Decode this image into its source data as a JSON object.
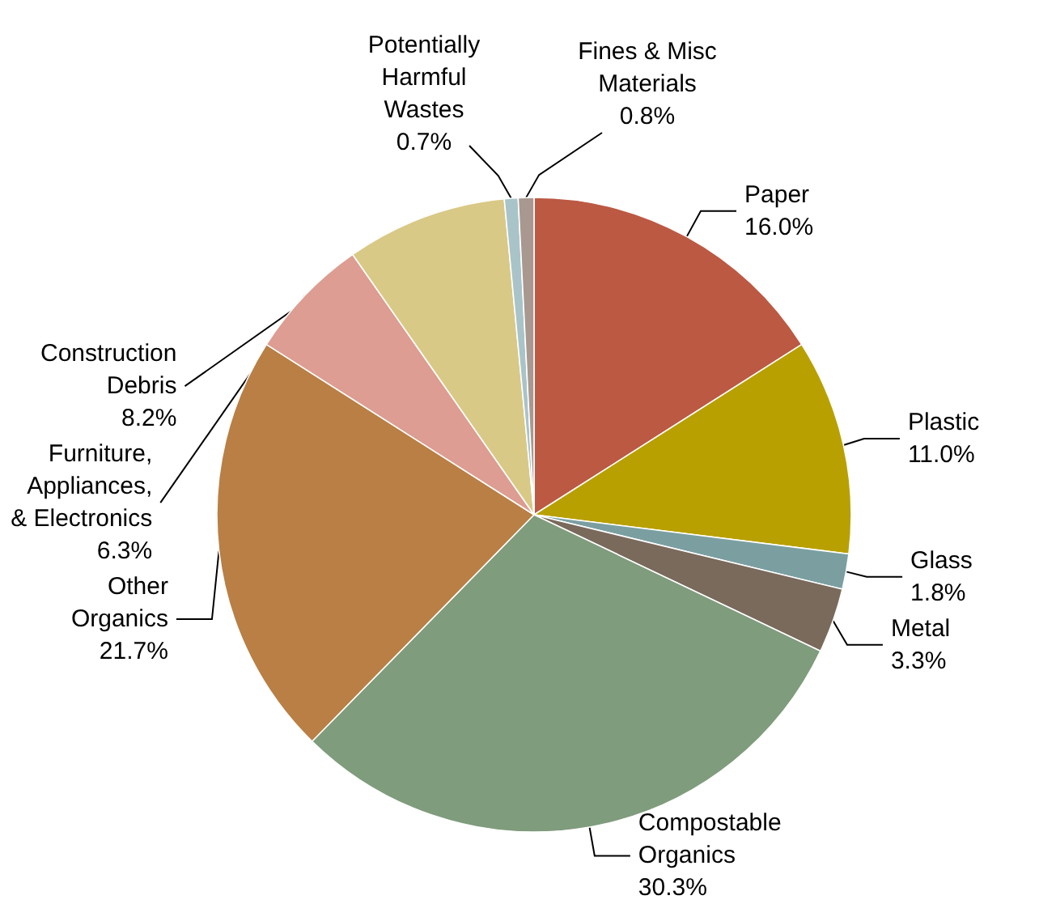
{
  "chart_data": {
    "type": "pie",
    "categories": [
      "Paper",
      "Plastic",
      "Glass",
      "Metal",
      "Compostable\nOrganics",
      "Other\nOrganics",
      "Furniture,\nAppliances,\n& Electronics",
      "Construction\nDebris",
      "Potentially\nHarmful\nWastes",
      "Fines & Misc\nMaterials"
    ],
    "values": [
      16.0,
      11.0,
      1.8,
      3.3,
      30.3,
      21.7,
      6.3,
      8.2,
      0.7,
      0.8
    ],
    "value_labels": [
      "16.0%",
      "11.0%",
      "1.8%",
      "3.3%",
      "30.3%",
      "21.7%",
      "6.3%",
      "8.2%",
      "0.7%",
      "0.8%"
    ],
    "colors": [
      "#bc5943",
      "#b8a000",
      "#7b9fa1",
      "#7a6a5c",
      "#7f9c7c",
      "#b97f44",
      "#dd9d92",
      "#d9c986",
      "#a9c4c9",
      "#a89890"
    ],
    "legend": false
  }
}
